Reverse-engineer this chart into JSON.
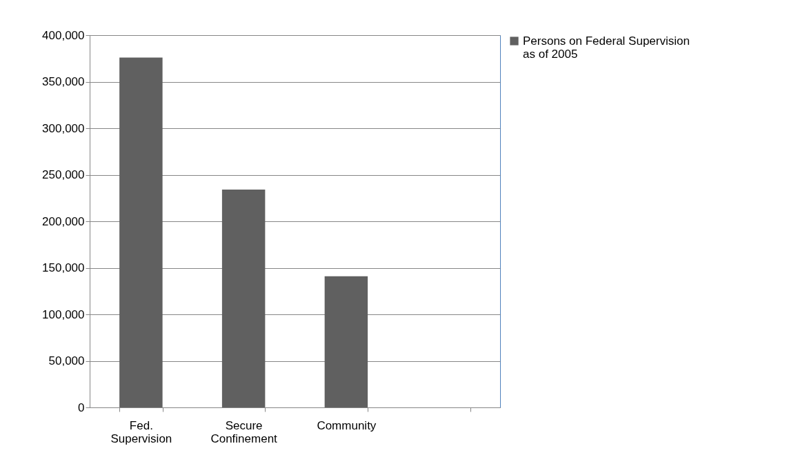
{
  "chart_data": {
    "type": "bar",
    "categories": [
      "Fed. Supervision",
      "Secure Confinement",
      "Community",
      null
    ],
    "series": [
      {
        "name": "Persons on Federal Supervision as of 2005",
        "color": "#606060",
        "values": [
          376000,
          234000,
          141000,
          null
        ]
      }
    ],
    "ylim": [
      0,
      400000
    ],
    "yticks": [
      0,
      {
        "value": 50000,
        "label": "50,000"
      },
      {
        "value": 100000,
        "label": "100,000"
      },
      {
        "value": 150000,
        "label": "150,000"
      },
      {
        "value": 200000,
        "label": "200,000"
      },
      {
        "value": 250000,
        "label": "250,000"
      },
      {
        "value": 300000,
        "label": "300,000"
      },
      {
        "value": 350000,
        "label": "350,000"
      },
      {
        "value": 400000,
        "label": "400,000"
      }
    ],
    "grid": "y",
    "legend": "right"
  }
}
